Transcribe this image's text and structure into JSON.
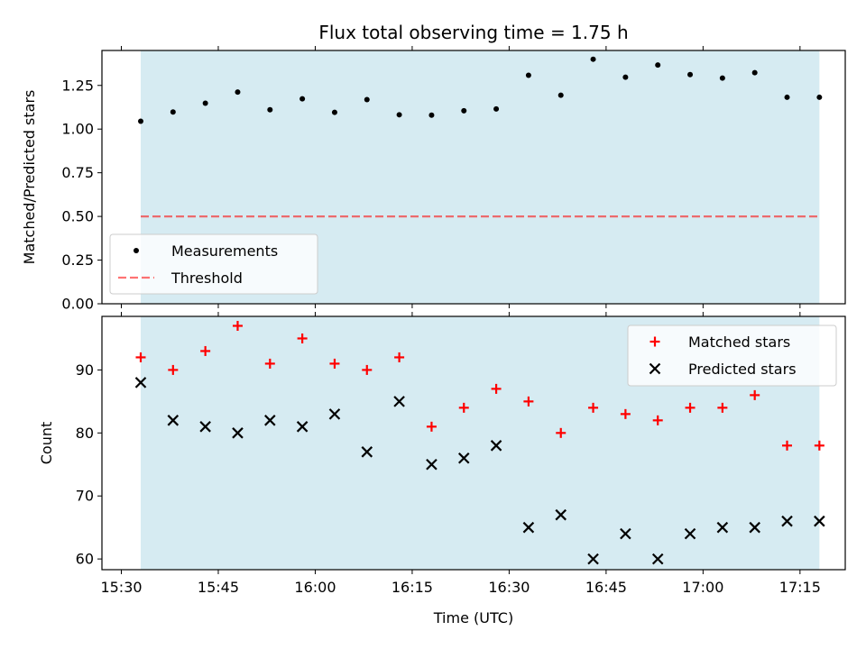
{
  "chart_data": {
    "title": "Flux total observing time = 1.75 h",
    "xlabel": "Time (UTC)",
    "x_ticks": [
      "15:30",
      "15:45",
      "16:00",
      "16:15",
      "16:30",
      "16:45",
      "17:00",
      "17:15"
    ],
    "x_range": [
      "15:27",
      "17:22"
    ],
    "shaded_span": [
      "15:33",
      "17:18"
    ],
    "colors": {
      "shade": "#add8e6",
      "measurements": "#000000",
      "threshold": "#ff0000",
      "matched": "#ff0000",
      "predicted": "#000000"
    },
    "times": [
      "15:33",
      "15:38",
      "15:43",
      "15:48",
      "15:53",
      "15:58",
      "16:03",
      "16:08",
      "16:13",
      "16:18",
      "16:23",
      "16:28",
      "16:33",
      "16:38",
      "16:43",
      "16:48",
      "16:53",
      "16:58",
      "17:03",
      "17:08",
      "17:13",
      "17:18"
    ],
    "panels": [
      {
        "type": "scatter",
        "ylabel": "Matched/Predicted stars",
        "ylim": [
          0,
          1.45
        ],
        "y_ticks": [
          "0.00",
          "0.25",
          "0.50",
          "0.75",
          "1.00",
          "1.25"
        ],
        "legend_position": "lower-left",
        "series": [
          {
            "name": "Measurements",
            "marker": "dot",
            "values": [
              1.045,
              1.098,
              1.148,
              1.212,
              1.111,
              1.173,
              1.096,
              1.169,
              1.082,
              1.08,
              1.105,
              1.115,
              1.308,
              1.194,
              1.4,
              1.297,
              1.367,
              1.312,
              1.292,
              1.323,
              1.182,
              1.182
            ]
          },
          {
            "name": "Threshold",
            "marker": "dashed-line",
            "value": 0.5
          }
        ]
      },
      {
        "type": "scatter",
        "ylabel": "Count",
        "ylim": [
          58.3,
          98.5
        ],
        "y_ticks": [
          "60",
          "70",
          "80",
          "90"
        ],
        "legend_position": "upper-right",
        "series": [
          {
            "name": "Matched stars",
            "marker": "plus",
            "values": [
              92,
              90,
              93,
              97,
              91,
              95,
              91,
              90,
              92,
              81,
              84,
              87,
              85,
              80,
              84,
              83,
              82,
              84,
              84,
              86,
              78,
              78
            ]
          },
          {
            "name": "Predicted stars",
            "marker": "x",
            "values": [
              88,
              82,
              81,
              80,
              82,
              81,
              83,
              77,
              85,
              75,
              76,
              78,
              65,
              67,
              60,
              64,
              60,
              64,
              65,
              65,
              66,
              66
            ]
          }
        ]
      }
    ]
  }
}
